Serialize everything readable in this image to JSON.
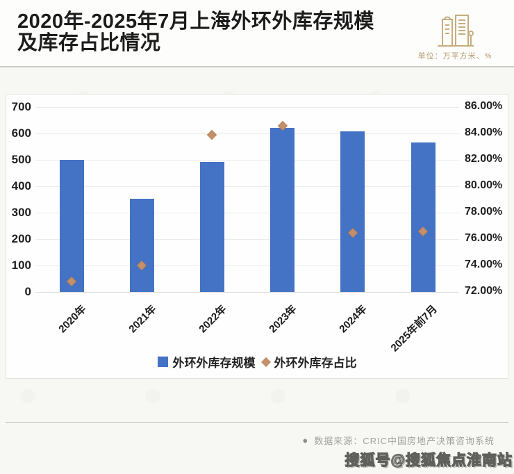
{
  "header": {
    "title_line1": "2020年-2025年7月上海外环外库存规模",
    "title_line2": "及库存占比情况",
    "unit_label": "单位：万平方米、%"
  },
  "chart_data": {
    "type": "bar",
    "title": "2020年-2025年7月上海外环外库存规模及库存占比情况",
    "categories": [
      "2020年",
      "2021年",
      "2022年",
      "2023年",
      "2024年",
      "2025年前7月"
    ],
    "series": [
      {
        "name": "外环外库存规模",
        "type": "bar",
        "axis": "left",
        "values": [
          500,
          352,
          492,
          622,
          609,
          566
        ],
        "color": "#4472c4"
      },
      {
        "name": "外环外库存占比",
        "type": "scatter",
        "axis": "right",
        "values_pct": [
          72.8,
          74.0,
          83.9,
          84.6,
          76.5,
          76.6
        ],
        "color": "#c4906a"
      }
    ],
    "left_axis": {
      "min": 0,
      "max": 700,
      "step": 100,
      "ticks": [
        "700",
        "600",
        "500",
        "400",
        "300",
        "200",
        "100",
        "0"
      ]
    },
    "right_axis": {
      "min": 72,
      "max": 86,
      "step": 2,
      "ticks": [
        "86.00%",
        "84.00%",
        "82.00%",
        "80.00%",
        "78.00%",
        "76.00%",
        "74.00%",
        "72.00%"
      ]
    },
    "grid": true,
    "legend_position": "bottom",
    "unit": "万平方米、%"
  },
  "footer": {
    "bullet": "●",
    "source": "数据来源：CRIC中国房地产决策咨询系统",
    "watermark": "搜狐号@搜狐焦点淮南站"
  }
}
